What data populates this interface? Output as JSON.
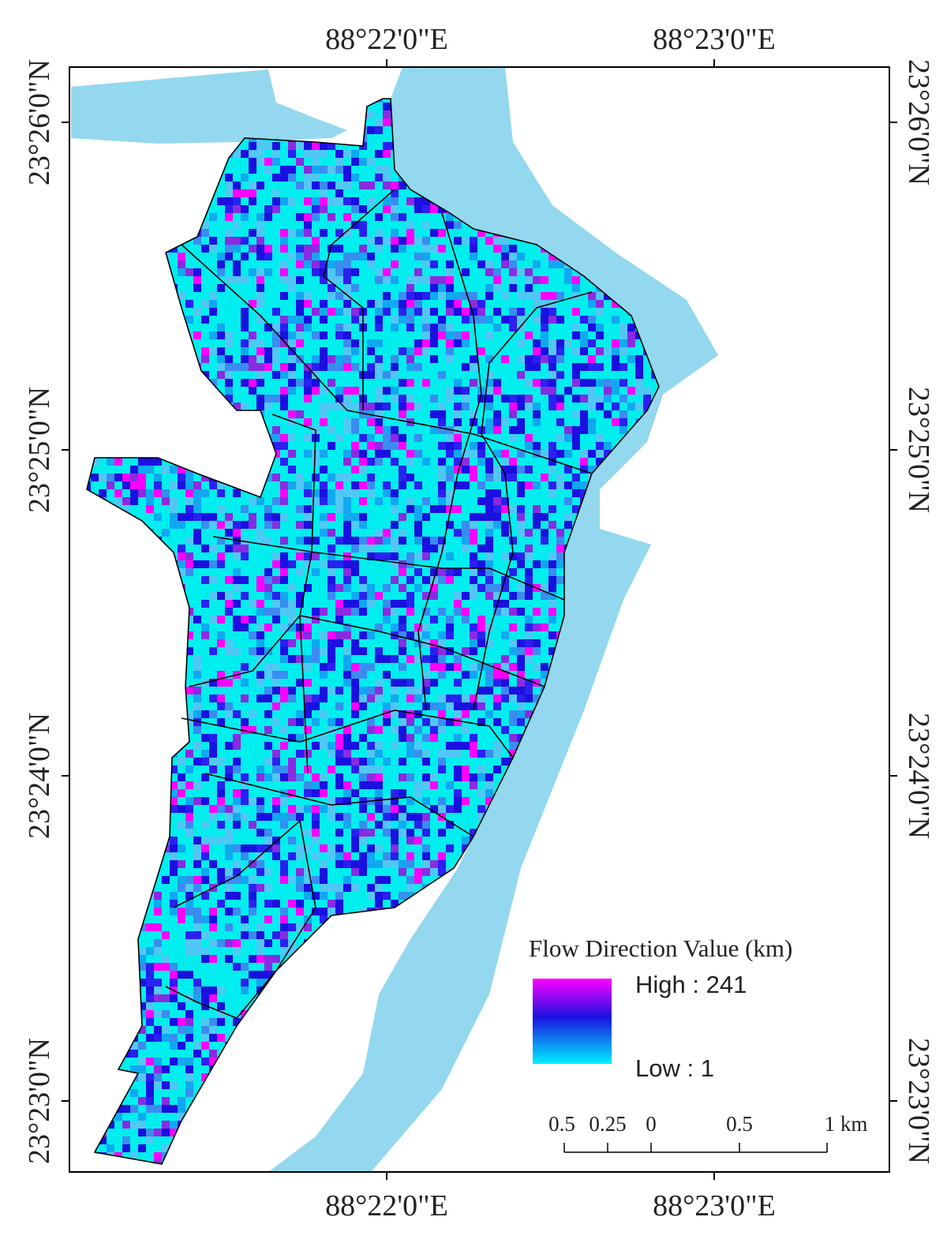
{
  "map": {
    "top_labels": [
      "88°22'0\"E",
      "88°23'0\"E"
    ],
    "bottom_labels": [
      "88°22'0\"E",
      "88°23'0\"E"
    ],
    "left_labels": [
      "23°26'0\"N",
      "23°25'0\"N",
      "23°24'0\"N",
      "23°23'0\"N"
    ],
    "right_labels": [
      "23°26'0\"N",
      "23°25'0\"N",
      "23°24'0\"N",
      "23°23'0\"N"
    ],
    "legend": {
      "title": "Flow Direction Value (km)",
      "high": "High : 241",
      "low": "Low : 1"
    },
    "scale_bar": {
      "labels": [
        "0.5",
        "0.25",
        "0",
        "0.5",
        "1 km"
      ]
    }
  }
}
